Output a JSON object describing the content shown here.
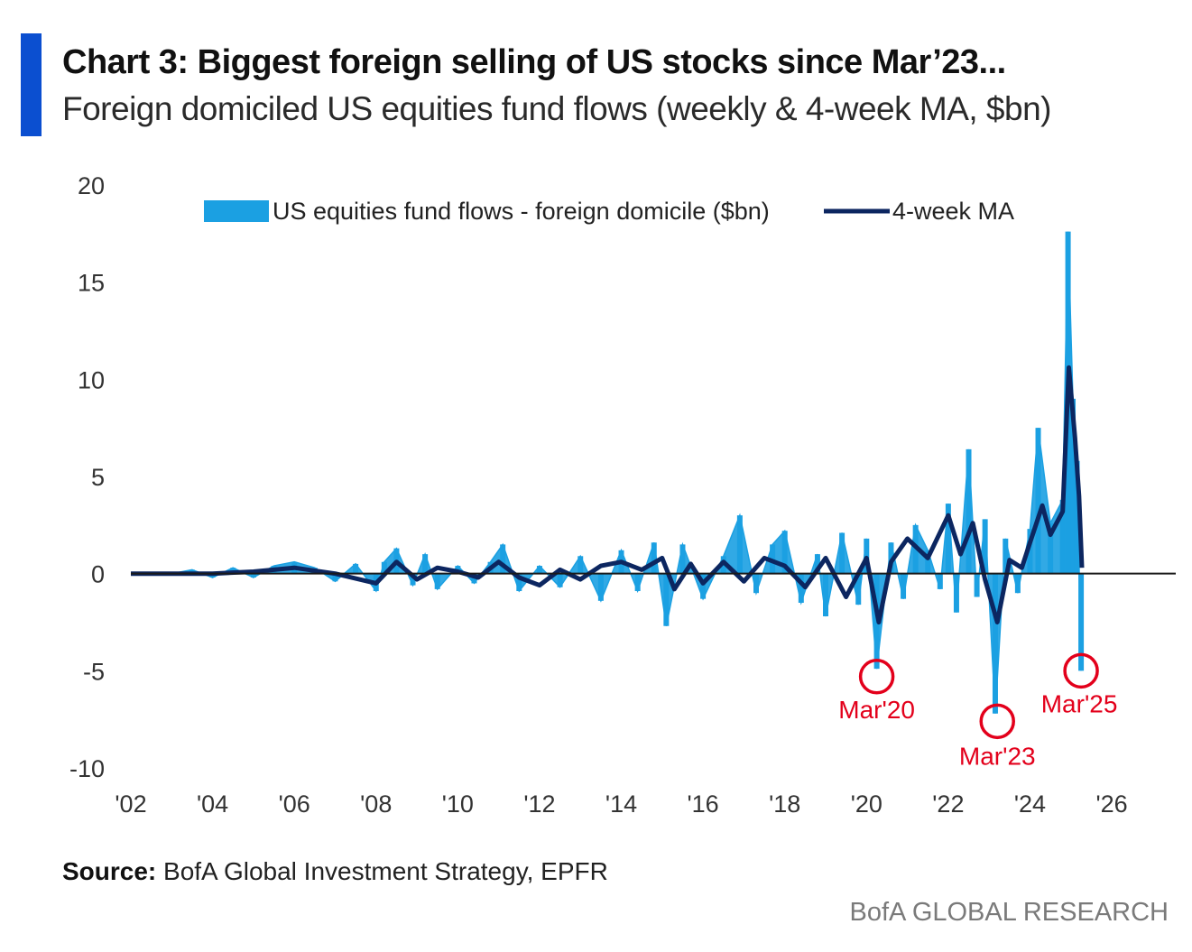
{
  "header": {
    "title": "Chart 3: Biggest foreign selling of US stocks since Mar’23...",
    "subtitle": "Foreign domiciled US equities fund flows (weekly & 4-week MA, $bn)"
  },
  "footer": {
    "source_label": "Source:",
    "source_text": "BofA Global Investment Strategy, EPFR",
    "brand": "BofA GLOBAL RESEARCH"
  },
  "colors": {
    "accent": "#0b4fd0",
    "bars": "#1ba0e2",
    "ma_line": "#0c2660",
    "annotation": "#e3001b"
  },
  "chart_data": {
    "type": "bar",
    "title": "Chart 3: Biggest foreign selling of US stocks since Mar’23...",
    "subtitle": "Foreign domiciled US equities fund flows (weekly & 4-week MA, $bn)",
    "xlabel": "",
    "ylabel": "",
    "xlim": [
      2002,
      2027.5
    ],
    "ylim": [
      -10,
      20
    ],
    "x_ticks": [
      2002,
      2004,
      2006,
      2008,
      2010,
      2012,
      2014,
      2016,
      2018,
      2020,
      2022,
      2024,
      2026
    ],
    "x_tick_labels": [
      "'02",
      "'04",
      "'06",
      "'08",
      "'10",
      "'12",
      "'14",
      "'16",
      "'18",
      "'20",
      "'22",
      "'24",
      "'26"
    ],
    "y_ticks": [
      -10,
      -5,
      0,
      5,
      10,
      15,
      20
    ],
    "y_tick_labels": [
      "-10",
      "-5",
      "0",
      "5",
      "10",
      "15",
      "20"
    ],
    "grid": false,
    "legend_position": "top",
    "series": [
      {
        "name": "US equities fund flows - foreign domicile ($bn)",
        "type": "bar",
        "color": "#1ba0e2",
        "points": [
          [
            2002.0,
            0.0
          ],
          [
            2003.0,
            0.0
          ],
          [
            2003.5,
            0.2
          ],
          [
            2004.0,
            -0.2
          ],
          [
            2004.5,
            0.3
          ],
          [
            2005.0,
            -0.2
          ],
          [
            2005.5,
            0.4
          ],
          [
            2006.0,
            0.6
          ],
          [
            2006.5,
            0.3
          ],
          [
            2007.0,
            -0.4
          ],
          [
            2007.5,
            0.5
          ],
          [
            2008.0,
            -0.9
          ],
          [
            2008.2,
            0.6
          ],
          [
            2008.5,
            1.3
          ],
          [
            2008.9,
            -0.6
          ],
          [
            2009.2,
            1.0
          ],
          [
            2009.5,
            -0.8
          ],
          [
            2010.0,
            0.4
          ],
          [
            2010.4,
            -0.5
          ],
          [
            2010.8,
            0.6
          ],
          [
            2011.1,
            1.5
          ],
          [
            2011.5,
            -0.9
          ],
          [
            2012.0,
            0.4
          ],
          [
            2012.5,
            -0.7
          ],
          [
            2013.0,
            0.9
          ],
          [
            2013.5,
            -1.4
          ],
          [
            2014.0,
            1.2
          ],
          [
            2014.4,
            -0.9
          ],
          [
            2014.8,
            1.6
          ],
          [
            2015.1,
            -2.7
          ],
          [
            2015.5,
            1.5
          ],
          [
            2016.0,
            -1.3
          ],
          [
            2016.5,
            0.9
          ],
          [
            2016.9,
            3.0
          ],
          [
            2017.3,
            -1.0
          ],
          [
            2017.7,
            1.5
          ],
          [
            2018.0,
            2.2
          ],
          [
            2018.4,
            -1.5
          ],
          [
            2018.8,
            1.0
          ],
          [
            2019.0,
            -2.2
          ],
          [
            2019.4,
            2.1
          ],
          [
            2019.8,
            -1.6
          ],
          [
            2020.0,
            1.8
          ],
          [
            2020.25,
            -4.9
          ],
          [
            2020.6,
            1.6
          ],
          [
            2020.9,
            -1.3
          ],
          [
            2021.2,
            2.5
          ],
          [
            2021.5,
            1.2
          ],
          [
            2021.8,
            -0.8
          ],
          [
            2022.0,
            3.6
          ],
          [
            2022.2,
            -2.0
          ],
          [
            2022.5,
            6.4
          ],
          [
            2022.7,
            -1.2
          ],
          [
            2022.9,
            2.8
          ],
          [
            2023.15,
            -7.2
          ],
          [
            2023.4,
            1.8
          ],
          [
            2023.7,
            -1.0
          ],
          [
            2024.0,
            2.3
          ],
          [
            2024.2,
            7.5
          ],
          [
            2024.5,
            2.6
          ],
          [
            2024.8,
            3.8
          ],
          [
            2024.93,
            17.6
          ],
          [
            2025.05,
            9.0
          ],
          [
            2025.15,
            5.8
          ],
          [
            2025.25,
            -5.0
          ]
        ]
      },
      {
        "name": "4-week MA",
        "type": "line",
        "color": "#0c2660",
        "points": [
          [
            2002.0,
            0.0
          ],
          [
            2003.0,
            0.0
          ],
          [
            2004.0,
            0.0
          ],
          [
            2005.0,
            0.1
          ],
          [
            2006.0,
            0.3
          ],
          [
            2007.0,
            0.0
          ],
          [
            2008.0,
            -0.5
          ],
          [
            2008.5,
            0.6
          ],
          [
            2009.0,
            -0.3
          ],
          [
            2009.5,
            0.3
          ],
          [
            2010.0,
            0.1
          ],
          [
            2010.5,
            -0.2
          ],
          [
            2011.0,
            0.6
          ],
          [
            2011.5,
            -0.2
          ],
          [
            2012.0,
            -0.6
          ],
          [
            2012.5,
            0.2
          ],
          [
            2013.0,
            -0.3
          ],
          [
            2013.5,
            0.4
          ],
          [
            2014.0,
            0.6
          ],
          [
            2014.5,
            0.2
          ],
          [
            2015.0,
            0.8
          ],
          [
            2015.3,
            -0.8
          ],
          [
            2015.7,
            0.5
          ],
          [
            2016.0,
            -0.5
          ],
          [
            2016.5,
            0.6
          ],
          [
            2017.0,
            -0.4
          ],
          [
            2017.5,
            0.8
          ],
          [
            2018.0,
            0.4
          ],
          [
            2018.5,
            -0.7
          ],
          [
            2019.0,
            0.8
          ],
          [
            2019.5,
            -1.2
          ],
          [
            2020.0,
            0.8
          ],
          [
            2020.3,
            -2.5
          ],
          [
            2020.6,
            0.6
          ],
          [
            2021.0,
            1.8
          ],
          [
            2021.5,
            0.8
          ],
          [
            2022.0,
            3.0
          ],
          [
            2022.3,
            1.0
          ],
          [
            2022.6,
            2.6
          ],
          [
            2022.9,
            -0.3
          ],
          [
            2023.2,
            -2.5
          ],
          [
            2023.5,
            0.7
          ],
          [
            2023.8,
            0.3
          ],
          [
            2024.0,
            1.6
          ],
          [
            2024.3,
            3.5
          ],
          [
            2024.5,
            2.0
          ],
          [
            2024.8,
            3.2
          ],
          [
            2024.95,
            10.6
          ],
          [
            2025.1,
            7.0
          ],
          [
            2025.2,
            4.0
          ],
          [
            2025.27,
            0.3
          ]
        ]
      }
    ],
    "annotations": [
      {
        "label": "Mar'20",
        "x": 2020.25,
        "y": -5.3,
        "label_side": "below"
      },
      {
        "label": "Mar'23",
        "x": 2023.2,
        "y": -7.6,
        "label_side": "below"
      },
      {
        "label": "Mar'25",
        "x": 2025.25,
        "y": -5.0,
        "label_side": "below"
      }
    ]
  }
}
